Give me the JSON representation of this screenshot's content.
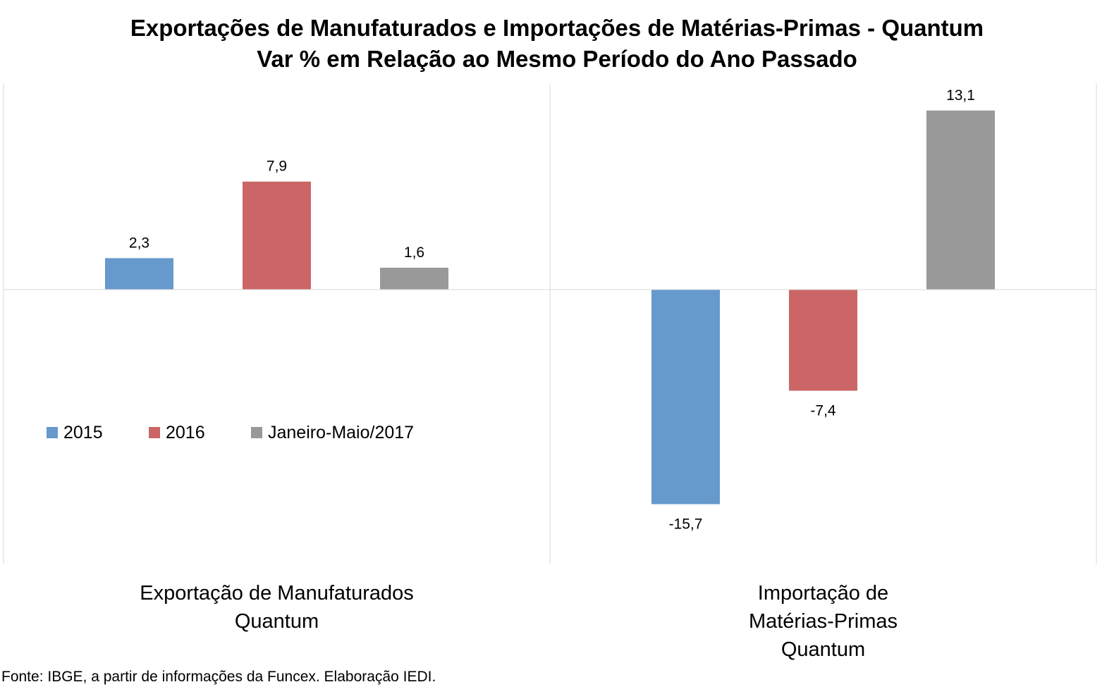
{
  "chart_data": {
    "type": "bar",
    "title": "Exportações de Manufaturados e Importações de Matérias-Primas - Quantum",
    "subtitle": "Var % em Relação ao Mesmo Período do Ano Passado",
    "categories": [
      [
        "Exportação de Manufaturados",
        "Quantum"
      ],
      [
        "Importação de",
        "Matérias-Primas",
        "Quantum"
      ]
    ],
    "series": [
      {
        "name": "2015",
        "color": "#6699CC",
        "values": [
          2.3,
          -15.7
        ],
        "labels": [
          "2,3",
          "-15,7"
        ]
      },
      {
        "name": "2016",
        "color": "#CC6666",
        "values": [
          7.9,
          -7.4
        ],
        "labels": [
          "7,9",
          "-7,4"
        ]
      },
      {
        "name": "Janeiro-Maio/2017",
        "color": "#999999",
        "values": [
          1.6,
          13.1
        ],
        "labels": [
          "1,6",
          "13,1"
        ]
      }
    ],
    "ylim": [
      -20,
      15
    ],
    "grid": false,
    "legend_position": "inside-left"
  },
  "source": "Fonte: IBGE, a partir de  informações da Funcex. Elaboração IEDI."
}
